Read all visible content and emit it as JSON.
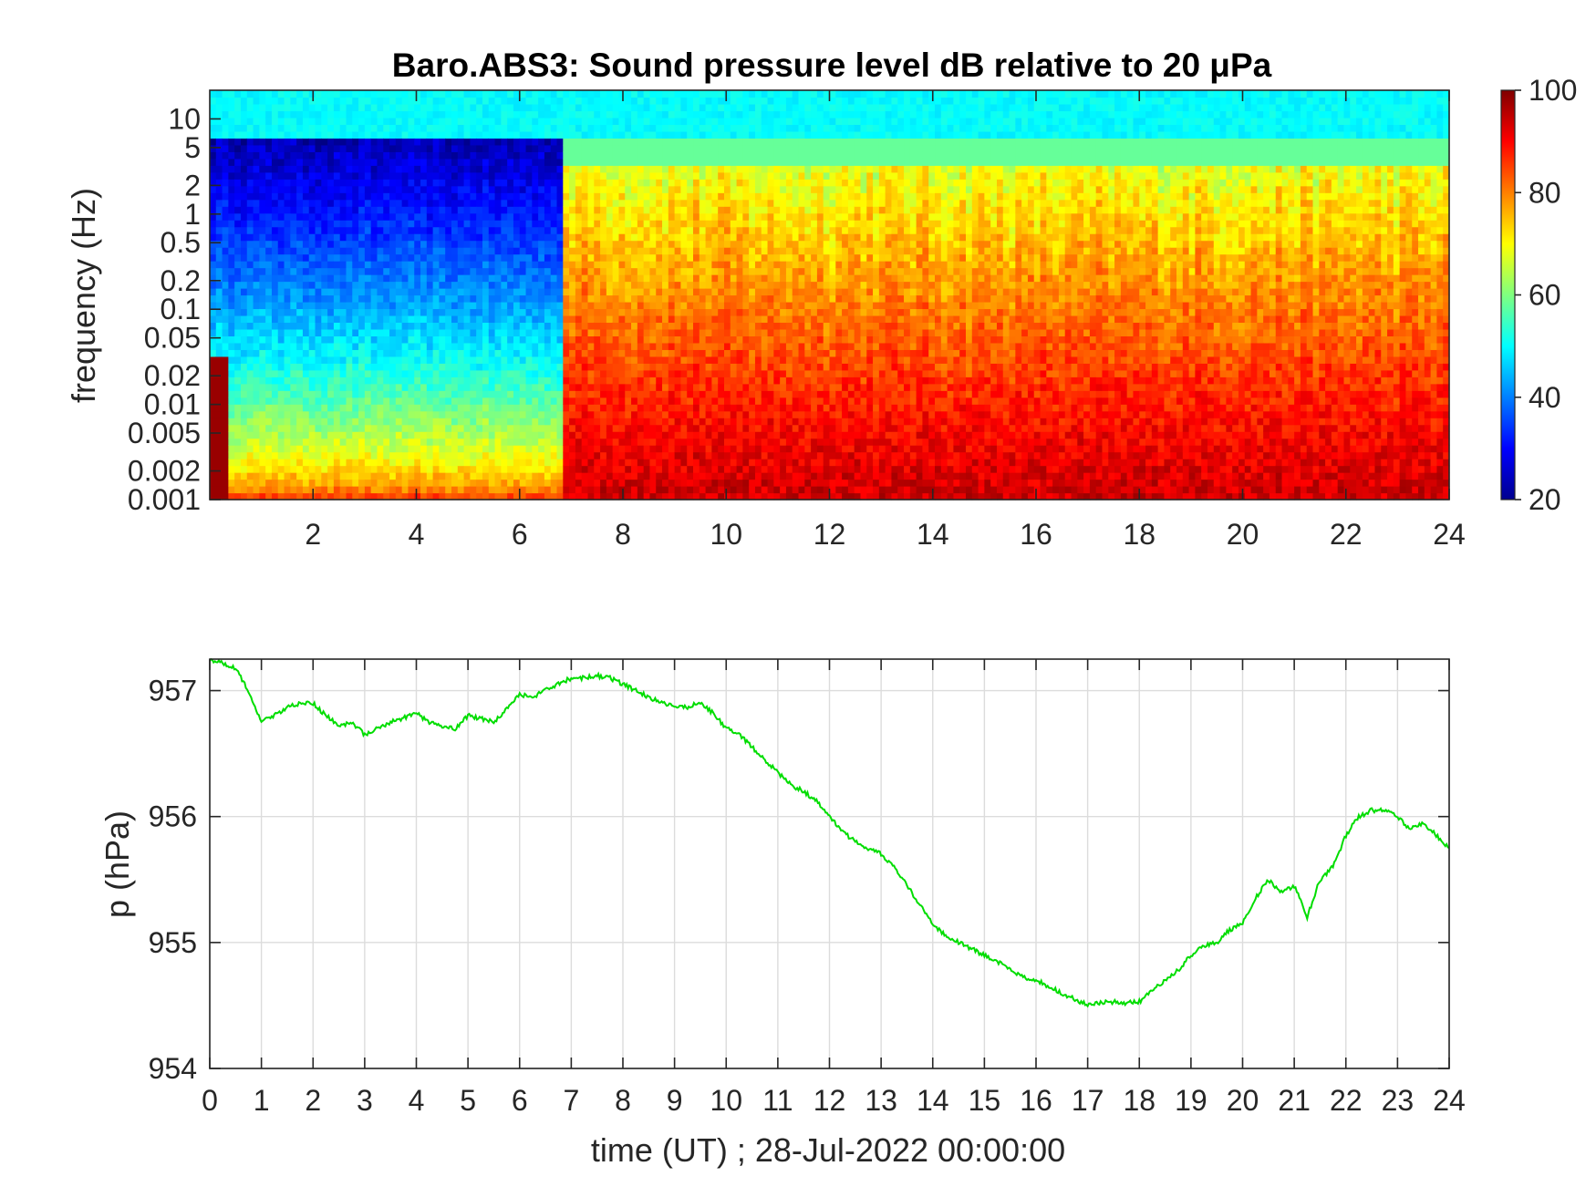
{
  "chart_data": [
    {
      "type": "heatmap",
      "title": "Baro.ABS3: Sound pressure level dB relative to 20 μPa",
      "ylabel": "frequency (Hz)",
      "xlabel": "",
      "x_range": [
        0,
        24
      ],
      "x_ticks": [
        "2",
        "4",
        "6",
        "8",
        "10",
        "12",
        "14",
        "16",
        "18",
        "20",
        "22",
        "24"
      ],
      "y_scale": "log",
      "y_range": [
        0.001,
        20
      ],
      "y_ticks": [
        "0.001",
        "0.002",
        "0.005",
        "0.01",
        "0.02",
        "0.05",
        "0.1",
        "0.2",
        "0.5",
        "1",
        "2",
        "5",
        "10"
      ],
      "colormap": "jet",
      "colorbar": {
        "range": [
          20,
          100
        ],
        "ticks": [
          "20",
          "40",
          "60",
          "80",
          "100"
        ]
      },
      "grid": false,
      "description_regions": [
        {
          "hours": [
            0,
            7
          ],
          "note_level_db_low_freq": 85,
          "note_level_db_mid_freq": 55,
          "note_level_db_high_freq": 45
        },
        {
          "hours": [
            7,
            24
          ],
          "note_level_db_low_freq": 90,
          "note_level_db_mid_freq": 72,
          "note_level_db_high_freq": 55
        }
      ]
    },
    {
      "type": "line",
      "xlabel": "time (UT) ; 28-Jul-2022 00:00:00",
      "ylabel": "p (hPa)",
      "xlim": [
        0,
        24
      ],
      "ylim": [
        954,
        957.25
      ],
      "x_ticks": [
        "0",
        "1",
        "2",
        "3",
        "4",
        "5",
        "6",
        "7",
        "8",
        "9",
        "10",
        "11",
        "12",
        "13",
        "14",
        "15",
        "16",
        "17",
        "18",
        "19",
        "20",
        "21",
        "22",
        "23",
        "24"
      ],
      "y_ticks": [
        "954",
        "955",
        "956",
        "957"
      ],
      "grid": true,
      "line_color": "#00dd00",
      "x": [
        0,
        0.25,
        0.5,
        0.75,
        1.0,
        1.25,
        1.5,
        1.75,
        2.0,
        2.25,
        2.5,
        2.75,
        3.0,
        3.25,
        3.5,
        3.75,
        4.0,
        4.25,
        4.5,
        4.75,
        5.0,
        5.25,
        5.5,
        5.75,
        6.0,
        6.25,
        6.5,
        6.75,
        7.0,
        7.25,
        7.5,
        7.75,
        8.0,
        8.25,
        8.5,
        8.75,
        9.0,
        9.25,
        9.5,
        9.75,
        10.0,
        10.25,
        10.5,
        10.75,
        11.0,
        11.25,
        11.5,
        11.75,
        12.0,
        12.25,
        12.5,
        12.75,
        13.0,
        13.25,
        13.5,
        13.75,
        14.0,
        14.25,
        14.5,
        14.75,
        15.0,
        15.25,
        15.5,
        15.75,
        16.0,
        16.25,
        16.5,
        16.75,
        17.0,
        17.25,
        17.5,
        17.75,
        18.0,
        18.25,
        18.5,
        18.75,
        19.0,
        19.25,
        19.5,
        19.75,
        20.0,
        20.25,
        20.5,
        20.75,
        21.0,
        21.25,
        21.5,
        21.75,
        22.0,
        22.25,
        22.5,
        22.75,
        23.0,
        23.25,
        23.5,
        23.75,
        24.0
      ],
      "values": [
        957.25,
        957.22,
        957.18,
        957.0,
        956.75,
        956.8,
        956.87,
        956.9,
        956.9,
        956.8,
        956.72,
        956.75,
        956.65,
        956.7,
        956.75,
        956.78,
        956.82,
        956.75,
        956.72,
        956.7,
        956.8,
        956.78,
        956.75,
        956.85,
        956.97,
        956.95,
        957.0,
        957.05,
        957.1,
        957.1,
        957.12,
        957.1,
        957.05,
        957.0,
        956.95,
        956.9,
        956.87,
        956.87,
        956.9,
        956.82,
        956.7,
        956.65,
        956.55,
        956.45,
        956.35,
        956.25,
        956.2,
        956.12,
        956.0,
        955.88,
        955.8,
        955.75,
        955.7,
        955.6,
        955.45,
        955.3,
        955.15,
        955.05,
        955.0,
        954.95,
        954.9,
        954.85,
        954.78,
        954.72,
        954.7,
        954.65,
        954.6,
        954.55,
        954.5,
        954.52,
        954.53,
        954.52,
        954.53,
        954.62,
        954.7,
        954.78,
        954.9,
        954.97,
        955.0,
        955.1,
        955.15,
        955.35,
        955.5,
        955.4,
        955.45,
        955.2,
        955.5,
        955.6,
        955.85,
        956.0,
        956.05,
        956.05,
        956.0,
        955.9,
        955.95,
        955.85,
        955.75
      ]
    }
  ]
}
